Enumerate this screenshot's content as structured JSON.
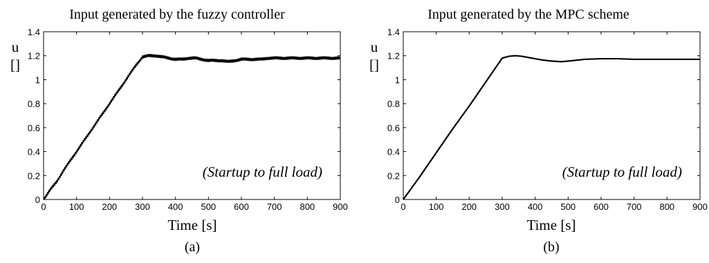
{
  "chart_data": [
    {
      "type": "line",
      "title": "Input generated by the fuzzy controller",
      "xlabel": "Time [s]",
      "ylabel_symbol": "u",
      "ylabel_unit": "[]",
      "caption": "(a)",
      "annotation": "(Startup to full load)",
      "xlim": [
        0,
        900
      ],
      "ylim": [
        0,
        1.4
      ],
      "xticks": [
        "0",
        "100",
        "200",
        "300",
        "400",
        "500",
        "600",
        "700",
        "800",
        "900"
      ],
      "yticks": [
        "0",
        "0.2",
        "0.4",
        "0.6",
        "0.8",
        "1",
        "1.2",
        "1.4"
      ],
      "grid": false,
      "series": [
        {
          "x": [
            0,
            20,
            40,
            60,
            80,
            100,
            120,
            140,
            160,
            180,
            200,
            220,
            240,
            260,
            280,
            300,
            320,
            340,
            360,
            380,
            400,
            420,
            440,
            460,
            480,
            500,
            520,
            540,
            560,
            580,
            600,
            620,
            640,
            660,
            680,
            700,
            720,
            740,
            760,
            780,
            800,
            820,
            840,
            860,
            880,
            900
          ],
          "y": [
            0.0,
            0.08,
            0.15,
            0.24,
            0.32,
            0.4,
            0.48,
            0.56,
            0.64,
            0.72,
            0.8,
            0.88,
            0.96,
            1.04,
            1.12,
            1.19,
            1.2,
            1.2,
            1.19,
            1.18,
            1.17,
            1.17,
            1.18,
            1.18,
            1.17,
            1.16,
            1.16,
            1.16,
            1.15,
            1.16,
            1.17,
            1.17,
            1.17,
            1.17,
            1.18,
            1.18,
            1.18,
            1.18,
            1.18,
            1.18,
            1.18,
            1.18,
            1.18,
            1.18,
            1.18,
            1.18
          ],
          "noise": 0.012
        }
      ]
    },
    {
      "type": "line",
      "title": "Input generated by the MPC scheme",
      "xlabel": "Time [s]",
      "ylabel_symbol": "u",
      "ylabel_unit": "[]",
      "caption": "(b)",
      "annotation": "(Startup to full load)",
      "xlim": [
        0,
        900
      ],
      "ylim": [
        0,
        1.4
      ],
      "xticks": [
        "0",
        "100",
        "200",
        "300",
        "400",
        "500",
        "600",
        "700",
        "800",
        "900"
      ],
      "yticks": [
        "0",
        "0.2",
        "0.4",
        "0.6",
        "0.8",
        "1",
        "1.2",
        "1.4"
      ],
      "grid": false,
      "series": [
        {
          "x": [
            0,
            50,
            100,
            150,
            200,
            250,
            300,
            320,
            340,
            360,
            380,
            400,
            420,
            450,
            480,
            500,
            550,
            600,
            650,
            700,
            750,
            800,
            850,
            900
          ],
          "y": [
            0.0,
            0.19,
            0.39,
            0.59,
            0.78,
            0.98,
            1.18,
            1.195,
            1.2,
            1.195,
            1.185,
            1.175,
            1.165,
            1.155,
            1.15,
            1.155,
            1.17,
            1.175,
            1.175,
            1.17,
            1.17,
            1.17,
            1.17,
            1.17
          ],
          "noise": 0
        }
      ]
    }
  ]
}
